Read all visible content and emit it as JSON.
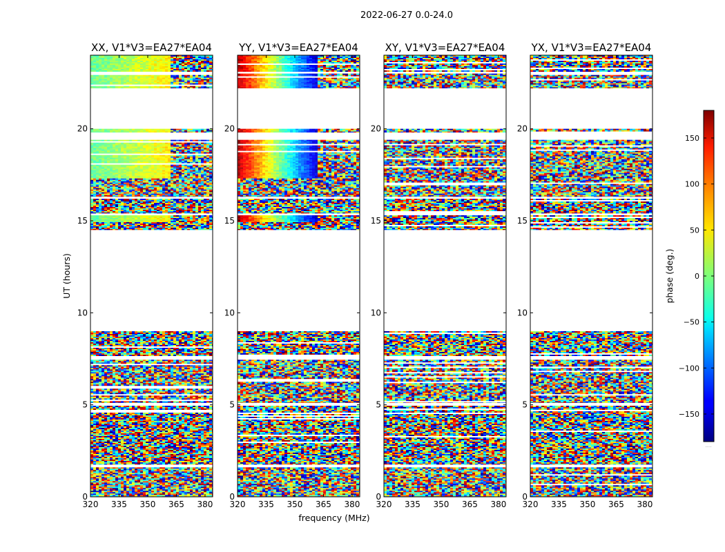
{
  "chart_data": {
    "type": "heatmap",
    "title": "2022-06-27 0.0-24.0",
    "xlabel": "frequency (MHz)",
    "ylabel": "UT (hours)",
    "xlim": [
      320,
      384
    ],
    "ylim": [
      0,
      24
    ],
    "xticks": [
      320,
      335,
      350,
      365,
      380
    ],
    "yticks": [
      0,
      5,
      10,
      15,
      20
    ],
    "colorbar": {
      "label": "phase (deg.)",
      "range": [
        -180,
        180
      ],
      "ticks": [
        150,
        100,
        50,
        0,
        -50,
        -100,
        -150
      ],
      "tick_labels": [
        "150",
        "100",
        "50",
        "0",
        "−50",
        "−100",
        "−150"
      ],
      "colormap": "jet",
      "footnote": "....."
    },
    "panels": [
      {
        "title": "XX, V1*V3=EA27*EA04",
        "pol": "XX"
      },
      {
        "title": "YY, V1*V3=EA27*EA04",
        "pol": "YY"
      },
      {
        "title": "XY, V1*V3=EA27*EA04",
        "pol": "XY"
      },
      {
        "title": "YX, V1*V3=EA27*EA04",
        "pol": "YX"
      }
    ],
    "data_segments_hours": [
      [
        0.0,
        1.6
      ],
      [
        1.75,
        4.95
      ],
      [
        5.1,
        7.45
      ],
      [
        7.65,
        9.0
      ],
      [
        14.5,
        15.3
      ],
      [
        15.4,
        16.2
      ],
      [
        16.3,
        19.4
      ],
      [
        19.8,
        20.0
      ],
      [
        22.2,
        23.0
      ],
      [
        23.1,
        24.0
      ]
    ],
    "coherent_segments_hours": [
      [
        15.0,
        15.3
      ],
      [
        17.3,
        19.4
      ],
      [
        19.8,
        20.0
      ],
      [
        22.2,
        24.0
      ]
    ],
    "coherent_phase_deg": {
      "XX": {
        "start": -10,
        "end": 50
      },
      "YY": {
        "start": 160,
        "end": -150
      }
    },
    "noise_onset_mhz": 361
  }
}
